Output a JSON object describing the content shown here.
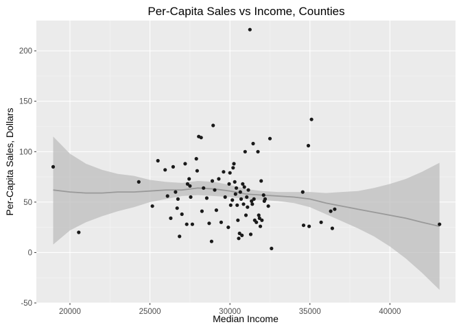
{
  "chart_data": {
    "type": "scatter",
    "title": "Per-Capita Sales vs Income, Counties",
    "xlabel": "Median Income",
    "ylabel": "Per-Capita Sales, Dollars",
    "xlim": [
      17900,
      44100
    ],
    "ylim": [
      -50,
      230
    ],
    "x_ticks": [
      20000,
      25000,
      30000,
      35000,
      40000
    ],
    "x_tick_labels": [
      "20000",
      "25000",
      "30000",
      "35000",
      "40000"
    ],
    "y_ticks": [
      -50,
      0,
      50,
      100,
      150,
      200
    ],
    "y_tick_labels": [
      "-50",
      "0",
      "50",
      "100",
      "150",
      "200"
    ],
    "grid": true,
    "background_color": "#ebebeb",
    "point_color": "#1a1a1a",
    "smooth_line_color": "#999999",
    "ribbon_color": "#bdbdbd",
    "points": [
      [
        18950,
        85
      ],
      [
        20550,
        20
      ],
      [
        24300,
        70
      ],
      [
        25150,
        46
      ],
      [
        25500,
        91
      ],
      [
        25950,
        82
      ],
      [
        26100,
        56
      ],
      [
        26300,
        34
      ],
      [
        26450,
        85
      ],
      [
        26600,
        60
      ],
      [
        26700,
        44
      ],
      [
        26750,
        53
      ],
      [
        26850,
        16
      ],
      [
        27000,
        38
      ],
      [
        27200,
        88
      ],
      [
        27300,
        28
      ],
      [
        27350,
        68
      ],
      [
        27450,
        73
      ],
      [
        27500,
        66
      ],
      [
        27550,
        55
      ],
      [
        27650,
        28
      ],
      [
        27900,
        93
      ],
      [
        27950,
        81
      ],
      [
        28050,
        115
      ],
      [
        28200,
        114
      ],
      [
        28250,
        41
      ],
      [
        28350,
        64
      ],
      [
        28550,
        54
      ],
      [
        28700,
        29
      ],
      [
        28850,
        11
      ],
      [
        28900,
        71
      ],
      [
        28950,
        126
      ],
      [
        29050,
        62
      ],
      [
        29150,
        42
      ],
      [
        29300,
        73
      ],
      [
        29450,
        30
      ],
      [
        29600,
        80
      ],
      [
        29700,
        55
      ],
      [
        29900,
        25
      ],
      [
        29950,
        68
      ],
      [
        30000,
        79
      ],
      [
        30050,
        47
      ],
      [
        30150,
        52
      ],
      [
        30200,
        84
      ],
      [
        30250,
        88
      ],
      [
        30300,
        70
      ],
      [
        30350,
        58
      ],
      [
        30400,
        64
      ],
      [
        30450,
        47
      ],
      [
        30500,
        32
      ],
      [
        30550,
        14
      ],
      [
        30600,
        19
      ],
      [
        30650,
        60
      ],
      [
        30700,
        53
      ],
      [
        30750,
        17
      ],
      [
        30800,
        68
      ],
      [
        30850,
        48
      ],
      [
        30900,
        65
      ],
      [
        30950,
        100
      ],
      [
        31000,
        37
      ],
      [
        31050,
        55
      ],
      [
        31100,
        45
      ],
      [
        31150,
        62
      ],
      [
        31250,
        221
      ],
      [
        31300,
        18
      ],
      [
        31350,
        51
      ],
      [
        31400,
        48
      ],
      [
        31450,
        108
      ],
      [
        31500,
        53
      ],
      [
        31550,
        32
      ],
      [
        31650,
        30
      ],
      [
        31750,
        100
      ],
      [
        31800,
        37
      ],
      [
        31850,
        34
      ],
      [
        31900,
        26
      ],
      [
        31950,
        71
      ],
      [
        32000,
        32
      ],
      [
        32100,
        57
      ],
      [
        32150,
        51
      ],
      [
        32200,
        53
      ],
      [
        32400,
        46
      ],
      [
        32500,
        113
      ],
      [
        32600,
        4
      ],
      [
        34550,
        60
      ],
      [
        34600,
        27
      ],
      [
        34900,
        106
      ],
      [
        34950,
        26
      ],
      [
        35100,
        132
      ],
      [
        35700,
        30
      ],
      [
        36300,
        41
      ],
      [
        36400,
        24
      ],
      [
        36550,
        43
      ],
      [
        43100,
        28
      ]
    ],
    "smooth_fit": [
      [
        18950,
        62
      ],
      [
        20000,
        60
      ],
      [
        21000,
        59
      ],
      [
        22000,
        59
      ],
      [
        23000,
        60
      ],
      [
        24000,
        60
      ],
      [
        25000,
        61
      ],
      [
        26000,
        62
      ],
      [
        27000,
        62
      ],
      [
        28000,
        64
      ],
      [
        29000,
        63
      ],
      [
        30000,
        61
      ],
      [
        31000,
        58
      ],
      [
        32000,
        57
      ],
      [
        33000,
        56
      ],
      [
        34000,
        55
      ],
      [
        35000,
        53
      ],
      [
        36000,
        49
      ],
      [
        37000,
        46
      ],
      [
        38000,
        43
      ],
      [
        39000,
        40
      ],
      [
        40000,
        37
      ],
      [
        41000,
        34
      ],
      [
        42000,
        30
      ],
      [
        43100,
        26
      ]
    ],
    "ribbon_upper": [
      [
        18950,
        115
      ],
      [
        20000,
        98
      ],
      [
        21000,
        88
      ],
      [
        22000,
        82
      ],
      [
        23000,
        78
      ],
      [
        24000,
        76
      ],
      [
        25000,
        72
      ],
      [
        26000,
        70
      ],
      [
        27000,
        69
      ],
      [
        28000,
        71
      ],
      [
        29000,
        70
      ],
      [
        30000,
        67
      ],
      [
        31000,
        63
      ],
      [
        32000,
        61
      ],
      [
        33000,
        60
      ],
      [
        34000,
        60
      ],
      [
        35000,
        60
      ],
      [
        36000,
        59
      ],
      [
        37000,
        60
      ],
      [
        38000,
        61
      ],
      [
        39000,
        64
      ],
      [
        40000,
        68
      ],
      [
        41000,
        73
      ],
      [
        42000,
        80
      ],
      [
        43100,
        89
      ]
    ],
    "ribbon_lower": [
      [
        18950,
        8
      ],
      [
        20000,
        22
      ],
      [
        21000,
        30
      ],
      [
        22000,
        36
      ],
      [
        23000,
        41
      ],
      [
        24000,
        45
      ],
      [
        25000,
        50
      ],
      [
        26000,
        53
      ],
      [
        27000,
        56
      ],
      [
        28000,
        57
      ],
      [
        29000,
        56
      ],
      [
        30000,
        55
      ],
      [
        31000,
        53
      ],
      [
        32000,
        52
      ],
      [
        33000,
        51
      ],
      [
        34000,
        49
      ],
      [
        35000,
        45
      ],
      [
        36000,
        38
      ],
      [
        37000,
        31
      ],
      [
        38000,
        24
      ],
      [
        39000,
        16
      ],
      [
        40000,
        6
      ],
      [
        41000,
        -6
      ],
      [
        42000,
        -20
      ],
      [
        43100,
        -37
      ]
    ]
  }
}
